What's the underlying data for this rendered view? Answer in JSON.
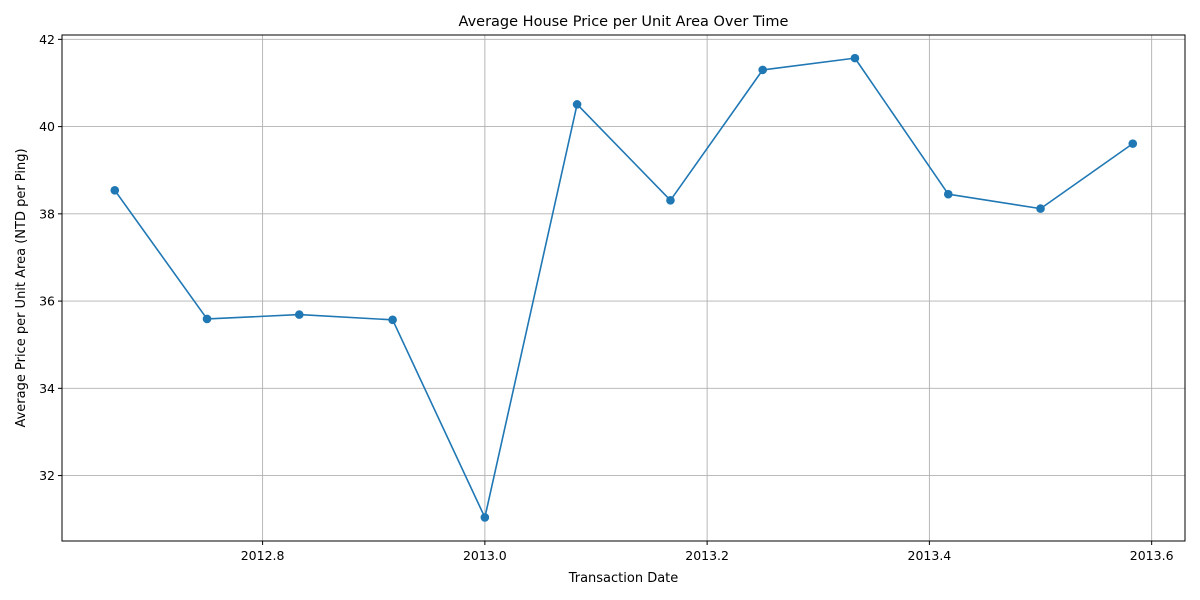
{
  "chart_data": {
    "type": "line",
    "title": "Average House Price per Unit Area Over Time",
    "xlabel": "Transaction Date",
    "ylabel": "Average Price per Unit Area (NTD per Ping)",
    "xlim": [
      2012.6195,
      2013.63
    ],
    "ylim": [
      30.5,
      42.1
    ],
    "grid": true,
    "x_ticks": [
      2012.8,
      2013.0,
      2013.2,
      2013.4,
      2013.6
    ],
    "x_tick_labels": [
      "2012.8",
      "2013.0",
      "2013.2",
      "2013.4",
      "2013.6"
    ],
    "y_ticks": [
      32,
      34,
      36,
      38,
      40,
      42
    ],
    "y_tick_labels": [
      "32",
      "34",
      "36",
      "38",
      "40",
      "42"
    ],
    "series": [
      {
        "color": "#1f77b4",
        "marker": "circle",
        "x": [
          2012.667,
          2012.75,
          2012.833,
          2012.917,
          2013.0,
          2013.083,
          2013.167,
          2013.25,
          2013.333,
          2013.417,
          2013.5,
          2013.583
        ],
        "y": [
          38.54,
          35.59,
          35.69,
          35.57,
          31.04,
          40.51,
          38.31,
          41.3,
          41.57,
          38.45,
          38.12,
          39.61
        ]
      }
    ]
  }
}
